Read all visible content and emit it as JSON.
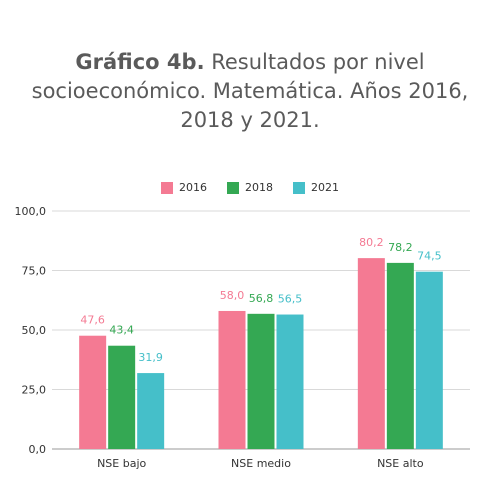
{
  "title_bold": "Gráfico 4b.",
  "title_rest": " Resultados por nivel socioeconómico. Matemática. Años 2016, 2018 y 2021.",
  "chart_data": {
    "type": "bar",
    "categories": [
      "NSE bajo",
      "NSE medio",
      "NSE alto"
    ],
    "series": [
      {
        "name": "2016",
        "color": "#f47a93",
        "values": [
          47.6,
          58.0,
          80.2
        ],
        "labels": [
          "47,6",
          "58,0",
          "80,2"
        ]
      },
      {
        "name": "2018",
        "color": "#34a853",
        "values": [
          43.4,
          56.8,
          78.2
        ],
        "labels": [
          "43,4",
          "56,8",
          "78,2"
        ]
      },
      {
        "name": "2021",
        "color": "#45bfc9",
        "values": [
          31.9,
          56.5,
          74.5
        ],
        "labels": [
          "31,9",
          "56,5",
          "74,5"
        ]
      }
    ],
    "yticks": [
      0,
      25,
      50,
      75,
      100
    ],
    "ytick_labels": [
      "0,0",
      "25,0",
      "50,0",
      "75,0",
      "100,0"
    ],
    "ylim": [
      0,
      100
    ],
    "grid": true,
    "legend_position": "top"
  }
}
